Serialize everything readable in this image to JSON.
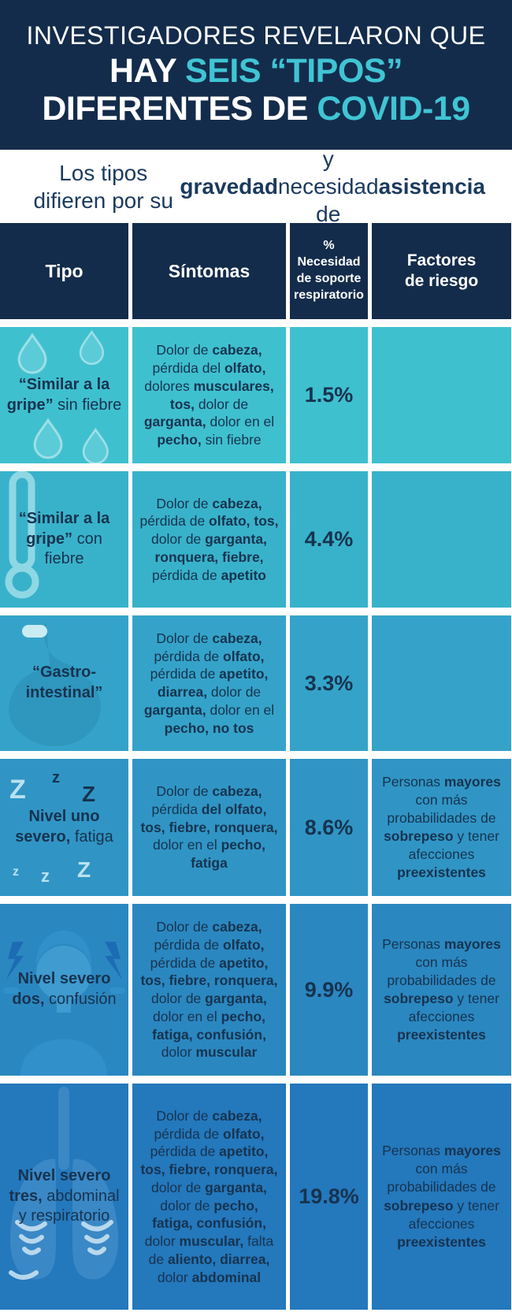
{
  "banner": {
    "line1": "INVESTIGADORES REVELARON QUE",
    "line2_white": "HAY ",
    "line2_teal": "SEIS “TIPOS”",
    "line3_white": "DIFERENTES DE ",
    "line3_teal": "COVID-19"
  },
  "subtitle": {
    "segments": [
      {
        "b": 0,
        "t": "Los tipos difieren por su "
      },
      {
        "b": 1,
        "t": "gravedad"
      },
      {
        "b": 0,
        "t": " y necesidad de "
      },
      {
        "b": 1,
        "t": "asistencia"
      }
    ]
  },
  "colors": {
    "header_navy": "#142c4b",
    "accent_teal": "#40c4d4",
    "text_navy": "#17334f",
    "row_backgrounds": [
      "#3fc0cf",
      "#38b2ca",
      "#35a3c9",
      "#3095c5",
      "#2b87c0",
      "#2478bc"
    ]
  },
  "table": {
    "columns": [
      "Tipo",
      "Síntomas",
      "%\nNecesidad\nde soporte\nrespiratorio",
      "Factores\nde riesgo"
    ],
    "rows": [
      {
        "icon": "water-drops-icon",
        "color": "#3fc0cf",
        "type": [
          {
            "b": 1,
            "t": "“Similar a la gripe”"
          },
          {
            "b": 0,
            "t": " sin fiebre"
          }
        ],
        "symptoms": [
          {
            "b": 0,
            "t": "Dolor de "
          },
          {
            "b": 1,
            "t": "cabeza,"
          },
          {
            "b": 0,
            "t": " pérdida del "
          },
          {
            "b": 1,
            "t": "olfato,"
          },
          {
            "b": 0,
            "t": " dolores "
          },
          {
            "b": 1,
            "t": "musculares, tos,"
          },
          {
            "b": 0,
            "t": " dolor de "
          },
          {
            "b": 1,
            "t": "garganta,"
          },
          {
            "b": 0,
            "t": " dolor en el "
          },
          {
            "b": 1,
            "t": "pecho,"
          },
          {
            "b": 0,
            "t": " sin fiebre"
          }
        ],
        "percent": "1.5%",
        "risk": []
      },
      {
        "icon": "thermometer-icon",
        "color": "#38b2ca",
        "type": [
          {
            "b": 1,
            "t": "“Similar a la gripe”"
          },
          {
            "b": 0,
            "t": " con fiebre"
          }
        ],
        "symptoms": [
          {
            "b": 0,
            "t": "Dolor de "
          },
          {
            "b": 1,
            "t": "cabeza,"
          },
          {
            "b": 0,
            "t": " pérdida de "
          },
          {
            "b": 1,
            "t": "olfato, tos,"
          },
          {
            "b": 0,
            "t": " dolor de "
          },
          {
            "b": 1,
            "t": "garganta, ronquera, fiebre,"
          },
          {
            "b": 0,
            "t": " pérdida de "
          },
          {
            "b": 1,
            "t": "apetito"
          }
        ],
        "percent": "4.4%",
        "risk": []
      },
      {
        "icon": "stomach-icon",
        "color": "#35a3c9",
        "type": [
          {
            "b": 1,
            "t": "“Gastro-intestinal”"
          }
        ],
        "symptoms": [
          {
            "b": 0,
            "t": "Dolor de "
          },
          {
            "b": 1,
            "t": "cabeza,"
          },
          {
            "b": 0,
            "t": " pérdida de "
          },
          {
            "b": 1,
            "t": "olfato,"
          },
          {
            "b": 0,
            "t": " pérdida de "
          },
          {
            "b": 1,
            "t": "apetito, diarrea,"
          },
          {
            "b": 0,
            "t": " dolor de "
          },
          {
            "b": 1,
            "t": "garganta,"
          },
          {
            "b": 0,
            "t": " dolor en el "
          },
          {
            "b": 1,
            "t": "pecho, no tos"
          }
        ],
        "percent": "3.3%",
        "risk": []
      },
      {
        "icon": "sleep-zzz-icon",
        "color": "#3095c5",
        "type": [
          {
            "b": 1,
            "t": "Nivel uno severo,"
          },
          {
            "b": 0,
            "t": " fatiga"
          }
        ],
        "symptoms": [
          {
            "b": 0,
            "t": "Dolor de "
          },
          {
            "b": 1,
            "t": "cabeza,"
          },
          {
            "b": 0,
            "t": " pérdida "
          },
          {
            "b": 1,
            "t": "del olfato, tos, fiebre, ronquera,"
          },
          {
            "b": 0,
            "t": " dolor en el "
          },
          {
            "b": 1,
            "t": "pecho, fatiga"
          }
        ],
        "percent": "8.6%",
        "risk": [
          {
            "b": 0,
            "t": "Personas "
          },
          {
            "b": 1,
            "t": "mayores"
          },
          {
            "b": 0,
            "t": " con más probabilidades de "
          },
          {
            "b": 1,
            "t": "sobrepeso"
          },
          {
            "b": 0,
            "t": " y tener afecciones "
          },
          {
            "b": 1,
            "t": "preexistentes"
          }
        ]
      },
      {
        "icon": "confusion-person-icon",
        "color": "#2b87c0",
        "type": [
          {
            "b": 1,
            "t": "Nivel severo dos,"
          },
          {
            "b": 0,
            "t": " confusión"
          }
        ],
        "symptoms": [
          {
            "b": 0,
            "t": "Dolor de "
          },
          {
            "b": 1,
            "t": "cabeza,"
          },
          {
            "b": 0,
            "t": " pérdida de "
          },
          {
            "b": 1,
            "t": "olfato,"
          },
          {
            "b": 0,
            "t": " pérdida de "
          },
          {
            "b": 1,
            "t": "apetito, tos, fiebre, ronquera,"
          },
          {
            "b": 0,
            "t": " dolor de "
          },
          {
            "b": 1,
            "t": "garganta,"
          },
          {
            "b": 0,
            "t": " dolor en el "
          },
          {
            "b": 1,
            "t": "pecho, fatiga, confusión,"
          },
          {
            "b": 0,
            "t": " dolor "
          },
          {
            "b": 1,
            "t": "muscular"
          }
        ],
        "percent": "9.9%",
        "risk": [
          {
            "b": 0,
            "t": "Personas "
          },
          {
            "b": 1,
            "t": "mayores"
          },
          {
            "b": 0,
            "t": " con más probabilidades de "
          },
          {
            "b": 1,
            "t": "sobrepeso"
          },
          {
            "b": 0,
            "t": " y tener afecciones "
          },
          {
            "b": 1,
            "t": "preexistentes"
          }
        ]
      },
      {
        "icon": "lungs-icon",
        "color": "#2478bc",
        "type": [
          {
            "b": 1,
            "t": "Nivel severo tres,"
          },
          {
            "b": 0,
            "t": " abdominal y respiratorio"
          }
        ],
        "symptoms": [
          {
            "b": 0,
            "t": "Dolor de "
          },
          {
            "b": 1,
            "t": "cabeza,"
          },
          {
            "b": 0,
            "t": " pérdida de "
          },
          {
            "b": 1,
            "t": "olfato,"
          },
          {
            "b": 0,
            "t": " pérdida de "
          },
          {
            "b": 1,
            "t": "apetito, tos, fiebre, ronquera,"
          },
          {
            "b": 0,
            "t": " dolor de "
          },
          {
            "b": 1,
            "t": "garganta,"
          },
          {
            "b": 0,
            "t": " dolor de "
          },
          {
            "b": 1,
            "t": "pecho, fatiga, confusión,"
          },
          {
            "b": 0,
            "t": " dolor "
          },
          {
            "b": 1,
            "t": "muscular,"
          },
          {
            "b": 0,
            "t": " falta de "
          },
          {
            "b": 1,
            "t": "aliento, diarrea,"
          },
          {
            "b": 0,
            "t": " dolor "
          },
          {
            "b": 1,
            "t": "abdominal"
          }
        ],
        "percent": "19.8%",
        "risk": [
          {
            "b": 0,
            "t": "Personas "
          },
          {
            "b": 1,
            "t": "mayores"
          },
          {
            "b": 0,
            "t": " con más probabilidades de "
          },
          {
            "b": 1,
            "t": "sobrepeso"
          },
          {
            "b": 0,
            "t": " y tener afecciones "
          },
          {
            "b": 1,
            "t": "preexistentes"
          }
        ]
      }
    ]
  }
}
